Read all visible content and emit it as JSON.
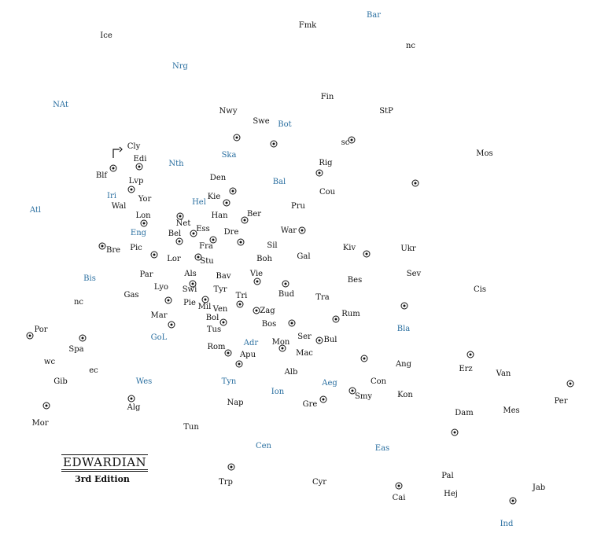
{
  "title": "EDWARDIAN",
  "edition": "3rd Edition",
  "colors": {
    "land_label": "#111111",
    "sea_label": "#2a6fa0",
    "background": "#ffffff"
  },
  "land_labels": [
    "Fmk",
    "Ice",
    "nc",
    "Fin",
    "StP",
    "Nwy",
    "Swe",
    "sc",
    "Mos",
    "Clyd",
    "Rig",
    "Edi",
    "Blf",
    "Den",
    "Lvp",
    "Kie",
    "Cou",
    "Yor",
    "Wal",
    "Pru",
    "Lon",
    "Ber",
    "Han",
    "Net",
    "Ess",
    "War",
    "Bel",
    "Dre",
    "Sil",
    "Fra",
    "Bre",
    "Pic",
    "Kiv",
    "Ukr",
    "Lor",
    "Stu",
    "Gal",
    "Boh",
    "Par",
    "Als",
    "Bav",
    "Vie",
    "Sev",
    "Bes",
    "Lyo",
    "Swi",
    "Tyr",
    "Bud",
    "Gas",
    "nc2",
    "Pie",
    "Mil",
    "Tri",
    "Tra",
    "Cis",
    "Ven",
    "Zag",
    "Mar",
    "Bol",
    "Rum",
    "Bos",
    "Tus",
    "Por",
    "Ser",
    "Bul",
    "Spa",
    "Mon",
    "Rom",
    "Mac",
    "Apu",
    "wc",
    "ec",
    "Ang",
    "Erz",
    "Alb",
    "Van",
    "Con",
    "Gib",
    "Kon",
    "Smy",
    "Gre",
    "Per",
    "Nap",
    "Alg",
    "Dam",
    "Mes",
    "Mor",
    "Tun",
    "Pal",
    "Trp",
    "Cyr",
    "Jab",
    "Hej",
    "Cai"
  ],
  "labels": {
    "Fmk": "Fmk",
    "Ice": "Ice",
    "nc": "nc",
    "Fin": "Fin",
    "StP": "StP",
    "Nwy": "Nwy",
    "Swe": "Swe",
    "sc": "sc",
    "Mos": "Mos",
    "Clyd": "Cly",
    "Rig": "Rig",
    "Edi": "Edi",
    "Blf": "Blf",
    "Den": "Den",
    "Lvp": "Lvp",
    "Kie": "Kie",
    "Cou": "Cou",
    "Yor": "Yor",
    "Wal": "Wal",
    "Pru": "Pru",
    "Lon": "Lon",
    "Ber": "Ber",
    "Han": "Han",
    "Net": "Net",
    "Ess": "Ess",
    "War": "War",
    "Bel": "Bel",
    "Dre": "Dre",
    "Sil": "Sil",
    "Fra": "Fra",
    "Bre": "Bre",
    "Pic": "Pic",
    "Kiv": "Kiv",
    "Ukr": "Ukr",
    "Lor": "Lor",
    "Stu": "Stu",
    "Gal": "Gal",
    "Boh": "Boh",
    "Par": "Par",
    "Als": "Als",
    "Bav": "Bav",
    "Vie": "Vie",
    "Sev": "Sev",
    "Bes": "Bes",
    "Lyo": "Lyo",
    "Swi": "Swi",
    "Tyr": "Tyr",
    "Bud": "Bud",
    "Gas": "Gas",
    "nc2": "nc",
    "Pie": "Pie",
    "Mil": "Mil",
    "Tri": "Tri",
    "Tra": "Tra",
    "Cis": "Cis",
    "Ven": "Ven",
    "Zag": "Zag",
    "Mar": "Mar",
    "Bol": "Bol",
    "Rum": "Rum",
    "Bos": "Bos",
    "Tus": "Tus",
    "Por": "Por",
    "Ser": "Ser",
    "Bul": "Bul",
    "Spa": "Spa",
    "Mon": "Mon",
    "Rom": "Rom",
    "Mac": "Mac",
    "Apu": "Apu",
    "wc": "wc",
    "ec": "ec",
    "Ang": "Ang",
    "Erz": "Erz",
    "Alb": "Alb",
    "Van": "Van",
    "Con": "Con",
    "Gib": "Gib",
    "Kon": "Kon",
    "Smy": "Smy",
    "Gre": "Gre",
    "Per": "Per",
    "Nap": "Nap",
    "Alg": "Alg",
    "Dam": "Dam",
    "Mes": "Mes",
    "Mor": "Mor",
    "Tun": "Tun",
    "Pal": "Pal",
    "Trp": "Trp",
    "Cyr": "Cyr",
    "Jab": "Jab",
    "Hej": "Hej",
    "Cai": "Cai"
  },
  "sea_labels": [
    "Bar",
    "Nrg",
    "NAt",
    "Bot",
    "Ska",
    "Nth",
    "Bal",
    "Iri",
    "Hel",
    "Atl",
    "Eng",
    "Bis",
    "Bla",
    "GoL",
    "Adr",
    "Wes",
    "Tyn",
    "Aeg",
    "Ion",
    "Cen",
    "Eas",
    "Ind"
  ],
  "sea_text": {
    "Bar": "Bar",
    "Nrg": "Nrg",
    "NAt": "NAt",
    "Bot": "Bot",
    "Ska": "Ska",
    "Nth": "Nth",
    "Bal": "Bal",
    "Iri": "Iri",
    "Hel": "Hel",
    "Atl": "Atl",
    "Eng": "Eng",
    "Bis": "Bis",
    "Bla": "Bla",
    "GoL": "GoL",
    "Adr": "Adr",
    "Wes": "Wes",
    "Tyn": "Tyn",
    "Aeg": "Aeg",
    "Ion": "Ion",
    "Cen": "Cen",
    "Eas": "Eas",
    "Ind": "Ind"
  },
  "supply_center_count": 42
}
